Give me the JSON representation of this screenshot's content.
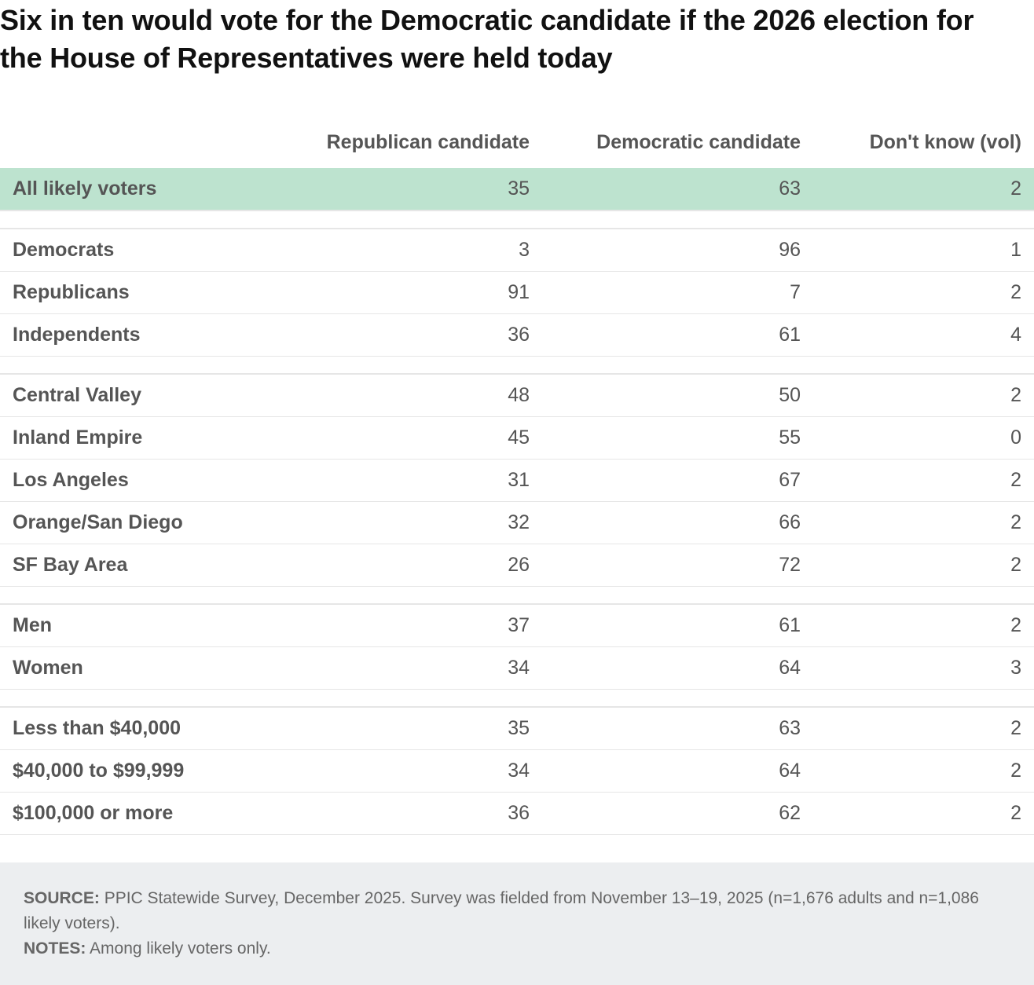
{
  "chart_data": {
    "type": "table",
    "title": "Six in ten would vote for the Democratic candidate if the 2026 election for the House of Representatives were held today",
    "columns": [
      "Republican candidate",
      "Democratic candidate",
      "Don't know (vol)"
    ],
    "groups": [
      [
        {
          "label": "All likely voters",
          "values": [
            "35",
            "63",
            "2"
          ],
          "highlight": true
        }
      ],
      [
        {
          "label": "Democrats",
          "values": [
            "3",
            "96",
            "1"
          ]
        },
        {
          "label": "Republicans",
          "values": [
            "91",
            "7",
            "2"
          ]
        },
        {
          "label": "Independents",
          "values": [
            "36",
            "61",
            "4"
          ]
        }
      ],
      [
        {
          "label": "Central Valley",
          "values": [
            "48",
            "50",
            "2"
          ]
        },
        {
          "label": "Inland Empire",
          "values": [
            "45",
            "55",
            "0"
          ]
        },
        {
          "label": "Los Angeles",
          "values": [
            "31",
            "67",
            "2"
          ]
        },
        {
          "label": "Orange/San Diego",
          "values": [
            "32",
            "66",
            "2"
          ]
        },
        {
          "label": "SF Bay Area",
          "values": [
            "26",
            "72",
            "2"
          ]
        }
      ],
      [
        {
          "label": "Men",
          "values": [
            "37",
            "61",
            "2"
          ]
        },
        {
          "label": "Women",
          "values": [
            "34",
            "64",
            "3"
          ]
        }
      ],
      [
        {
          "label": "Less than $40,000",
          "values": [
            "35",
            "63",
            "2"
          ]
        },
        {
          "label": "$40,000 to $99,999",
          "values": [
            "34",
            "64",
            "2"
          ]
        },
        {
          "label": "$100,000 or more",
          "values": [
            "36",
            "62",
            "2"
          ]
        }
      ]
    ],
    "highlight_color": "#bde3cf"
  },
  "footer": {
    "source_label": "SOURCE:",
    "source_text": "PPIC Statewide Survey, December 2025. Survey was fielded from November 13–19, 2025 (n=1,676 adults and n=1,086 likely voters).",
    "notes_label": "NOTES:",
    "notes_text": "Among likely voters only."
  }
}
